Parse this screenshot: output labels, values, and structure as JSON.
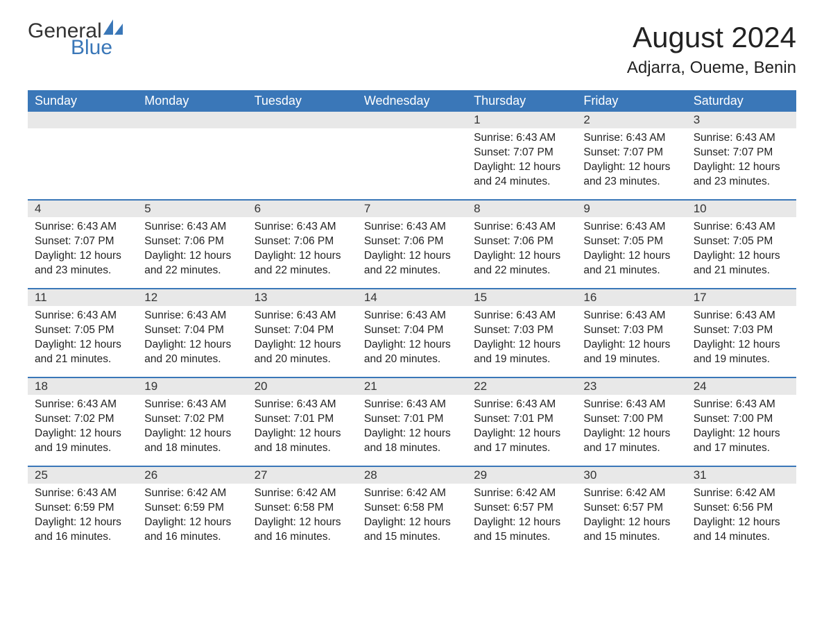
{
  "logo": {
    "textA": "General",
    "textB": "Blue",
    "iconColor": "#3a77b8"
  },
  "title": "August 2024",
  "location": "Adjarra, Oueme, Benin",
  "colors": {
    "headerBg": "#3a77b8",
    "headerText": "#ffffff",
    "dayBarBg": "#e8e8e8",
    "text": "#222222",
    "background": "#ffffff",
    "rowBorder": "#3a77b8"
  },
  "weekdays": [
    "Sunday",
    "Monday",
    "Tuesday",
    "Wednesday",
    "Thursday",
    "Friday",
    "Saturday"
  ],
  "weeks": [
    [
      null,
      null,
      null,
      null,
      {
        "n": "1",
        "sunrise": "Sunrise: 6:43 AM",
        "sunset": "Sunset: 7:07 PM",
        "daylight": "Daylight: 12 hours and 24 minutes."
      },
      {
        "n": "2",
        "sunrise": "Sunrise: 6:43 AM",
        "sunset": "Sunset: 7:07 PM",
        "daylight": "Daylight: 12 hours and 23 minutes."
      },
      {
        "n": "3",
        "sunrise": "Sunrise: 6:43 AM",
        "sunset": "Sunset: 7:07 PM",
        "daylight": "Daylight: 12 hours and 23 minutes."
      }
    ],
    [
      {
        "n": "4",
        "sunrise": "Sunrise: 6:43 AM",
        "sunset": "Sunset: 7:07 PM",
        "daylight": "Daylight: 12 hours and 23 minutes."
      },
      {
        "n": "5",
        "sunrise": "Sunrise: 6:43 AM",
        "sunset": "Sunset: 7:06 PM",
        "daylight": "Daylight: 12 hours and 22 minutes."
      },
      {
        "n": "6",
        "sunrise": "Sunrise: 6:43 AM",
        "sunset": "Sunset: 7:06 PM",
        "daylight": "Daylight: 12 hours and 22 minutes."
      },
      {
        "n": "7",
        "sunrise": "Sunrise: 6:43 AM",
        "sunset": "Sunset: 7:06 PM",
        "daylight": "Daylight: 12 hours and 22 minutes."
      },
      {
        "n": "8",
        "sunrise": "Sunrise: 6:43 AM",
        "sunset": "Sunset: 7:06 PM",
        "daylight": "Daylight: 12 hours and 22 minutes."
      },
      {
        "n": "9",
        "sunrise": "Sunrise: 6:43 AM",
        "sunset": "Sunset: 7:05 PM",
        "daylight": "Daylight: 12 hours and 21 minutes."
      },
      {
        "n": "10",
        "sunrise": "Sunrise: 6:43 AM",
        "sunset": "Sunset: 7:05 PM",
        "daylight": "Daylight: 12 hours and 21 minutes."
      }
    ],
    [
      {
        "n": "11",
        "sunrise": "Sunrise: 6:43 AM",
        "sunset": "Sunset: 7:05 PM",
        "daylight": "Daylight: 12 hours and 21 minutes."
      },
      {
        "n": "12",
        "sunrise": "Sunrise: 6:43 AM",
        "sunset": "Sunset: 7:04 PM",
        "daylight": "Daylight: 12 hours and 20 minutes."
      },
      {
        "n": "13",
        "sunrise": "Sunrise: 6:43 AM",
        "sunset": "Sunset: 7:04 PM",
        "daylight": "Daylight: 12 hours and 20 minutes."
      },
      {
        "n": "14",
        "sunrise": "Sunrise: 6:43 AM",
        "sunset": "Sunset: 7:04 PM",
        "daylight": "Daylight: 12 hours and 20 minutes."
      },
      {
        "n": "15",
        "sunrise": "Sunrise: 6:43 AM",
        "sunset": "Sunset: 7:03 PM",
        "daylight": "Daylight: 12 hours and 19 minutes."
      },
      {
        "n": "16",
        "sunrise": "Sunrise: 6:43 AM",
        "sunset": "Sunset: 7:03 PM",
        "daylight": "Daylight: 12 hours and 19 minutes."
      },
      {
        "n": "17",
        "sunrise": "Sunrise: 6:43 AM",
        "sunset": "Sunset: 7:03 PM",
        "daylight": "Daylight: 12 hours and 19 minutes."
      }
    ],
    [
      {
        "n": "18",
        "sunrise": "Sunrise: 6:43 AM",
        "sunset": "Sunset: 7:02 PM",
        "daylight": "Daylight: 12 hours and 19 minutes."
      },
      {
        "n": "19",
        "sunrise": "Sunrise: 6:43 AM",
        "sunset": "Sunset: 7:02 PM",
        "daylight": "Daylight: 12 hours and 18 minutes."
      },
      {
        "n": "20",
        "sunrise": "Sunrise: 6:43 AM",
        "sunset": "Sunset: 7:01 PM",
        "daylight": "Daylight: 12 hours and 18 minutes."
      },
      {
        "n": "21",
        "sunrise": "Sunrise: 6:43 AM",
        "sunset": "Sunset: 7:01 PM",
        "daylight": "Daylight: 12 hours and 18 minutes."
      },
      {
        "n": "22",
        "sunrise": "Sunrise: 6:43 AM",
        "sunset": "Sunset: 7:01 PM",
        "daylight": "Daylight: 12 hours and 17 minutes."
      },
      {
        "n": "23",
        "sunrise": "Sunrise: 6:43 AM",
        "sunset": "Sunset: 7:00 PM",
        "daylight": "Daylight: 12 hours and 17 minutes."
      },
      {
        "n": "24",
        "sunrise": "Sunrise: 6:43 AM",
        "sunset": "Sunset: 7:00 PM",
        "daylight": "Daylight: 12 hours and 17 minutes."
      }
    ],
    [
      {
        "n": "25",
        "sunrise": "Sunrise: 6:43 AM",
        "sunset": "Sunset: 6:59 PM",
        "daylight": "Daylight: 12 hours and 16 minutes."
      },
      {
        "n": "26",
        "sunrise": "Sunrise: 6:42 AM",
        "sunset": "Sunset: 6:59 PM",
        "daylight": "Daylight: 12 hours and 16 minutes."
      },
      {
        "n": "27",
        "sunrise": "Sunrise: 6:42 AM",
        "sunset": "Sunset: 6:58 PM",
        "daylight": "Daylight: 12 hours and 16 minutes."
      },
      {
        "n": "28",
        "sunrise": "Sunrise: 6:42 AM",
        "sunset": "Sunset: 6:58 PM",
        "daylight": "Daylight: 12 hours and 15 minutes."
      },
      {
        "n": "29",
        "sunrise": "Sunrise: 6:42 AM",
        "sunset": "Sunset: 6:57 PM",
        "daylight": "Daylight: 12 hours and 15 minutes."
      },
      {
        "n": "30",
        "sunrise": "Sunrise: 6:42 AM",
        "sunset": "Sunset: 6:57 PM",
        "daylight": "Daylight: 12 hours and 15 minutes."
      },
      {
        "n": "31",
        "sunrise": "Sunrise: 6:42 AM",
        "sunset": "Sunset: 6:56 PM",
        "daylight": "Daylight: 12 hours and 14 minutes."
      }
    ]
  ]
}
